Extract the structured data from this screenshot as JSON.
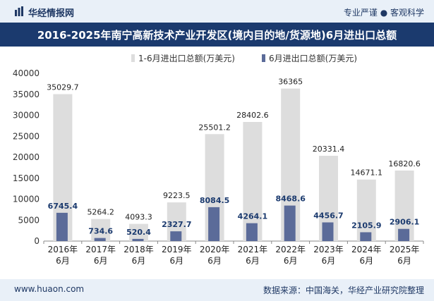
{
  "header": {
    "brand": "华经情报网",
    "tagline": "专业严谨 ● 客观科学"
  },
  "chart_data": {
    "type": "bar",
    "title": "2016-2025年南宁高新技术产业开发区(境内目的地/货源地)6月进出口总额",
    "xlabel": "",
    "ylabel": "",
    "categories": [
      "2016年\n6月",
      "2017年\n6月",
      "2018年\n6月",
      "2019年\n6月",
      "2020年\n6月",
      "2021年\n6月",
      "2022年\n6月",
      "2023年\n6月",
      "2024年\n6月",
      "2025年\n6月"
    ],
    "series": [
      {
        "name": "1-6月进出口总额(万美元)",
        "values": [
          35029.7,
          5264.2,
          4093.3,
          9223.5,
          25501.2,
          28402.6,
          36365,
          20331.4,
          14671.1,
          16820.6
        ],
        "labels": [
          "35029.7",
          "5264.2",
          "4093.3",
          "9223.5",
          "25501.2",
          "28402.6",
          "36365",
          "20331.4",
          "14671.1",
          "16820.6"
        ],
        "color": "#dddddd"
      },
      {
        "name": "6月进出口总额(万美元)",
        "values": [
          6745.4,
          734.6,
          520.4,
          2327.7,
          8084.5,
          4264.1,
          8468.6,
          4456.7,
          2105.9,
          2906.1
        ],
        "labels": [
          "6745.4",
          "734.6",
          "520.4",
          "2327.7",
          "8084.5",
          "4264.1",
          "8468.6",
          "4456.7",
          "2105.9",
          "2906.1"
        ],
        "color": "#5b6b99"
      }
    ],
    "ylim": [
      0,
      40000
    ],
    "yticks": [
      0,
      5000,
      10000,
      15000,
      20000,
      25000,
      30000,
      35000,
      40000
    ],
    "grid": false,
    "legend": "top-center"
  },
  "footer": {
    "site": "www.huaon.com",
    "source": "数据来源：中国海关，华经产业研究院整理"
  }
}
